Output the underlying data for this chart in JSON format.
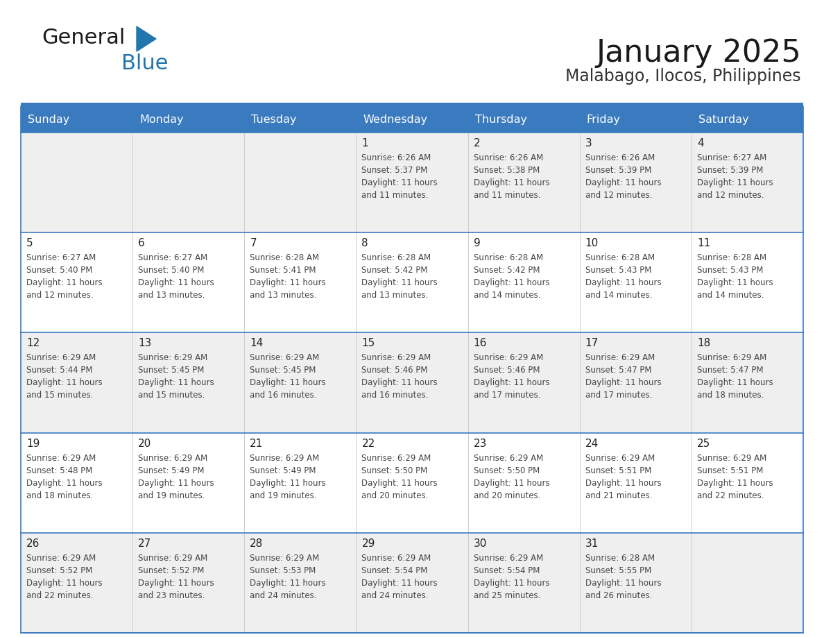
{
  "title": "January 2025",
  "subtitle": "Malabago, Ilocos, Philippines",
  "days_of_week": [
    "Sunday",
    "Monday",
    "Tuesday",
    "Wednesday",
    "Thursday",
    "Friday",
    "Saturday"
  ],
  "header_bg": "#3a7abf",
  "header_text": "#ffffff",
  "row_bg_odd": "#efefef",
  "row_bg_even": "#ffffff",
  "grid_line_color": "#3a7abf",
  "cell_text_color": "#444444",
  "day_num_color": "#222222",
  "calendar": [
    [
      null,
      null,
      null,
      {
        "day": 1,
        "sunrise": "6:26 AM",
        "sunset": "5:37 PM",
        "daylight": "11 hours and 11 minutes."
      },
      {
        "day": 2,
        "sunrise": "6:26 AM",
        "sunset": "5:38 PM",
        "daylight": "11 hours and 11 minutes."
      },
      {
        "day": 3,
        "sunrise": "6:26 AM",
        "sunset": "5:39 PM",
        "daylight": "11 hours and 12 minutes."
      },
      {
        "day": 4,
        "sunrise": "6:27 AM",
        "sunset": "5:39 PM",
        "daylight": "11 hours and 12 minutes."
      }
    ],
    [
      {
        "day": 5,
        "sunrise": "6:27 AM",
        "sunset": "5:40 PM",
        "daylight": "11 hours and 12 minutes."
      },
      {
        "day": 6,
        "sunrise": "6:27 AM",
        "sunset": "5:40 PM",
        "daylight": "11 hours and 13 minutes."
      },
      {
        "day": 7,
        "sunrise": "6:28 AM",
        "sunset": "5:41 PM",
        "daylight": "11 hours and 13 minutes."
      },
      {
        "day": 8,
        "sunrise": "6:28 AM",
        "sunset": "5:42 PM",
        "daylight": "11 hours and 13 minutes."
      },
      {
        "day": 9,
        "sunrise": "6:28 AM",
        "sunset": "5:42 PM",
        "daylight": "11 hours and 14 minutes."
      },
      {
        "day": 10,
        "sunrise": "6:28 AM",
        "sunset": "5:43 PM",
        "daylight": "11 hours and 14 minutes."
      },
      {
        "day": 11,
        "sunrise": "6:28 AM",
        "sunset": "5:43 PM",
        "daylight": "11 hours and 14 minutes."
      }
    ],
    [
      {
        "day": 12,
        "sunrise": "6:29 AM",
        "sunset": "5:44 PM",
        "daylight": "11 hours and 15 minutes."
      },
      {
        "day": 13,
        "sunrise": "6:29 AM",
        "sunset": "5:45 PM",
        "daylight": "11 hours and 15 minutes."
      },
      {
        "day": 14,
        "sunrise": "6:29 AM",
        "sunset": "5:45 PM",
        "daylight": "11 hours and 16 minutes."
      },
      {
        "day": 15,
        "sunrise": "6:29 AM",
        "sunset": "5:46 PM",
        "daylight": "11 hours and 16 minutes."
      },
      {
        "day": 16,
        "sunrise": "6:29 AM",
        "sunset": "5:46 PM",
        "daylight": "11 hours and 17 minutes."
      },
      {
        "day": 17,
        "sunrise": "6:29 AM",
        "sunset": "5:47 PM",
        "daylight": "11 hours and 17 minutes."
      },
      {
        "day": 18,
        "sunrise": "6:29 AM",
        "sunset": "5:47 PM",
        "daylight": "11 hours and 18 minutes."
      }
    ],
    [
      {
        "day": 19,
        "sunrise": "6:29 AM",
        "sunset": "5:48 PM",
        "daylight": "11 hours and 18 minutes."
      },
      {
        "day": 20,
        "sunrise": "6:29 AM",
        "sunset": "5:49 PM",
        "daylight": "11 hours and 19 minutes."
      },
      {
        "day": 21,
        "sunrise": "6:29 AM",
        "sunset": "5:49 PM",
        "daylight": "11 hours and 19 minutes."
      },
      {
        "day": 22,
        "sunrise": "6:29 AM",
        "sunset": "5:50 PM",
        "daylight": "11 hours and 20 minutes."
      },
      {
        "day": 23,
        "sunrise": "6:29 AM",
        "sunset": "5:50 PM",
        "daylight": "11 hours and 20 minutes."
      },
      {
        "day": 24,
        "sunrise": "6:29 AM",
        "sunset": "5:51 PM",
        "daylight": "11 hours and 21 minutes."
      },
      {
        "day": 25,
        "sunrise": "6:29 AM",
        "sunset": "5:51 PM",
        "daylight": "11 hours and 22 minutes."
      }
    ],
    [
      {
        "day": 26,
        "sunrise": "6:29 AM",
        "sunset": "5:52 PM",
        "daylight": "11 hours and 22 minutes."
      },
      {
        "day": 27,
        "sunrise": "6:29 AM",
        "sunset": "5:52 PM",
        "daylight": "11 hours and 23 minutes."
      },
      {
        "day": 28,
        "sunrise": "6:29 AM",
        "sunset": "5:53 PM",
        "daylight": "11 hours and 24 minutes."
      },
      {
        "day": 29,
        "sunrise": "6:29 AM",
        "sunset": "5:54 PM",
        "daylight": "11 hours and 24 minutes."
      },
      {
        "day": 30,
        "sunrise": "6:29 AM",
        "sunset": "5:54 PM",
        "daylight": "11 hours and 25 minutes."
      },
      {
        "day": 31,
        "sunrise": "6:28 AM",
        "sunset": "5:55 PM",
        "daylight": "11 hours and 26 minutes."
      },
      null
    ]
  ],
  "logo_text1": "General",
  "logo_text2": "Blue",
  "logo_color1": "#1a1a1a",
  "logo_color2": "#2176ae",
  "logo_triangle_color": "#2176ae",
  "title_fontsize": 32,
  "subtitle_fontsize": 17,
  "header_fontsize": 11.5,
  "daynum_fontsize": 11,
  "cell_fontsize": 8.5
}
